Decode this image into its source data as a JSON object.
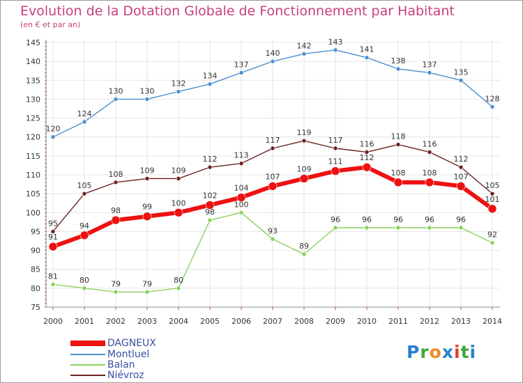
{
  "title": "Evolution de la Dotation Globale de Fonctionnement par Habitant",
  "subtitle": "(en € et par an)",
  "brand": {
    "text": "Proxiti",
    "colors": [
      "#2a7fd0",
      "#3fa83a",
      "#f08a1e",
      "#2a7fd0",
      "#e03c2e",
      "#3fa83a",
      "#2a7fd0"
    ]
  },
  "chart_data": {
    "type": "line",
    "x": [
      "2000",
      "2001",
      "2002",
      "2003",
      "2004",
      "2005",
      "2006",
      "2007",
      "2008",
      "2009",
      "2010",
      "2011",
      "2012",
      "2013",
      "2014"
    ],
    "ylim": [
      75,
      145
    ],
    "yticks": [
      "75",
      "80",
      "85",
      "90",
      "95",
      "100",
      "105",
      "110",
      "115",
      "120",
      "125",
      "130",
      "135",
      "140",
      "145"
    ],
    "grid": true,
    "legend_position": "bottom-left",
    "series": [
      {
        "name": "Montluel",
        "color": "#4d8fcf",
        "values": [
          120,
          124,
          130,
          130,
          132,
          134,
          137,
          140,
          142,
          143,
          141,
          138,
          137,
          135,
          128
        ]
      },
      {
        "name": "Balan",
        "color": "#8bd05a",
        "values": [
          81,
          80,
          79,
          79,
          80,
          98,
          100,
          93,
          89,
          96,
          96,
          96,
          96,
          96,
          92
        ]
      },
      {
        "name": "Niévroz",
        "color": "#6b2020",
        "values": [
          95,
          105,
          108,
          109,
          109,
          112,
          113,
          117,
          119,
          117,
          116,
          118,
          116,
          112,
          105
        ]
      },
      {
        "name": "DAGNEUX",
        "color": "#ee1111",
        "values": [
          91,
          94,
          98,
          99,
          100,
          102,
          104,
          107,
          109,
          111,
          112,
          108,
          108,
          107,
          101
        ]
      }
    ],
    "legend_order": [
      "DAGNEUX",
      "Montluel",
      "Balan",
      "Niévroz"
    ]
  }
}
